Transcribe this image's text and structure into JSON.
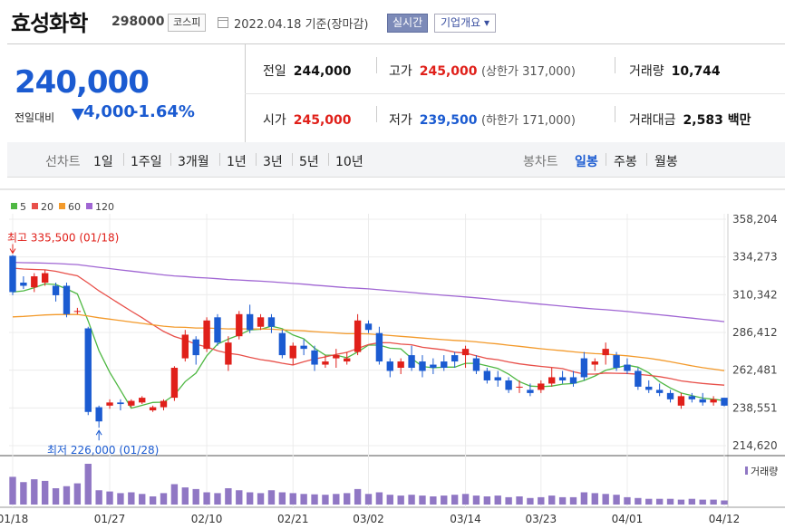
{
  "header": {
    "name": "효성화학",
    "code": "298000",
    "market": "코스피",
    "date": "2022.04.18 기준(장마감)",
    "realtime_btn": "실시간",
    "company_btn": "기업개요 ▾"
  },
  "quote": {
    "price": "240,000",
    "change_label": "전일대비",
    "change": "4,000",
    "change_pct": "-1.64%",
    "prev_close_label": "전일",
    "prev_close": "244,000",
    "high_label": "고가",
    "high": "245,000",
    "upper_limit": "(상한가 317,000)",
    "volume_label": "거래량",
    "volume": "10,744",
    "open_label": "시가",
    "open": "245,000",
    "low_label": "저가",
    "low": "239,500",
    "lower_limit": "(하한가 171,000)",
    "amount_label": "거래대금",
    "amount": "2,583 백만"
  },
  "periods": {
    "line_label": "선차트",
    "items": [
      "1일",
      "1주일",
      "3개월",
      "1년",
      "3년",
      "5년",
      "10년"
    ],
    "candle_label": "봉차트",
    "candle_items": [
      "일봉",
      "주봉",
      "월봉"
    ],
    "active_candle": "일봉"
  },
  "chart_data": {
    "type": "candlestick",
    "legend": [
      {
        "name": "5",
        "color": "#4fb843"
      },
      {
        "name": "20",
        "color": "#e8504a"
      },
      {
        "name": "60",
        "color": "#f39a2b"
      },
      {
        "name": "120",
        "color": "#a066d3"
      }
    ],
    "y_ticks": [
      "358,204",
      "334,273",
      "310,342",
      "286,412",
      "262,481",
      "238,551",
      "214,620"
    ],
    "y_tick_values": [
      358204,
      334273,
      310342,
      286412,
      262481,
      238551,
      214620
    ],
    "x_tick_labels": [
      "01/18",
      "01/27",
      "02/10",
      "02/21",
      "03/02",
      "03/14",
      "03/23",
      "04/01",
      "04/12"
    ],
    "x_tick_index": [
      0,
      9,
      18,
      26,
      33,
      42,
      49,
      57,
      66
    ],
    "annotation_high": "최고 335,500 (01/18)",
    "annotation_low": "최저 226,000 (01/28)",
    "volume_label": "거래량",
    "candles": [
      [
        335000,
        335500,
        310000,
        312000
      ],
      [
        318000,
        322000,
        314000,
        316000
      ],
      [
        315000,
        324000,
        312000,
        322000
      ],
      [
        318000,
        326000,
        316000,
        324000
      ],
      [
        316000,
        318000,
        306000,
        310000
      ],
      [
        316000,
        318000,
        296000,
        298000
      ],
      [
        300000,
        302000,
        298000,
        300000
      ],
      [
        289000,
        290000,
        234000,
        236000
      ],
      [
        239000,
        240000,
        226000,
        230000
      ],
      [
        240000,
        244000,
        238000,
        242000
      ],
      [
        242000,
        244000,
        237000,
        241000
      ],
      [
        240000,
        244000,
        239000,
        243000
      ],
      [
        242000,
        246000,
        241000,
        245000
      ],
      [
        237000,
        240000,
        236000,
        239000
      ],
      [
        239000,
        244000,
        237000,
        243000
      ],
      [
        245000,
        265000,
        243000,
        264000
      ],
      [
        270000,
        288000,
        268000,
        285000
      ],
      [
        282000,
        284000,
        266000,
        272000
      ],
      [
        276000,
        296000,
        274000,
        294000
      ],
      [
        296000,
        298000,
        278000,
        280000
      ],
      [
        266000,
        284000,
        262000,
        280000
      ],
      [
        284000,
        300000,
        282000,
        298000
      ],
      [
        298000,
        304000,
        286000,
        288000
      ],
      [
        290000,
        298000,
        288000,
        296000
      ],
      [
        296000,
        298000,
        286000,
        290000
      ],
      [
        286000,
        288000,
        270000,
        272000
      ],
      [
        270000,
        280000,
        266000,
        278000
      ],
      [
        278000,
        282000,
        272000,
        276000
      ],
      [
        275000,
        278000,
        262000,
        266000
      ],
      [
        266000,
        272000,
        264000,
        268000
      ],
      [
        270000,
        276000,
        264000,
        272000
      ],
      [
        268000,
        274000,
        266000,
        270000
      ],
      [
        274000,
        298000,
        272000,
        294000
      ],
      [
        292000,
        294000,
        286000,
        288000
      ],
      [
        286000,
        290000,
        266000,
        268000
      ],
      [
        268000,
        270000,
        258000,
        262000
      ],
      [
        264000,
        270000,
        260000,
        268000
      ],
      [
        272000,
        278000,
        262000,
        264000
      ],
      [
        268000,
        272000,
        258000,
        262000
      ],
      [
        266000,
        270000,
        260000,
        264000
      ],
      [
        268000,
        272000,
        262000,
        264000
      ],
      [
        272000,
        274000,
        264000,
        268000
      ],
      [
        272000,
        278000,
        264000,
        276000
      ],
      [
        270000,
        272000,
        260000,
        262000
      ],
      [
        262000,
        264000,
        254000,
        256000
      ],
      [
        258000,
        262000,
        252000,
        256000
      ],
      [
        256000,
        258000,
        248000,
        250000
      ],
      [
        252000,
        256000,
        248000,
        252000
      ],
      [
        250000,
        254000,
        246000,
        248000
      ],
      [
        250000,
        256000,
        248000,
        254000
      ],
      [
        254000,
        264000,
        252000,
        258000
      ],
      [
        258000,
        262000,
        254000,
        256000
      ],
      [
        258000,
        262000,
        252000,
        254000
      ],
      [
        270000,
        274000,
        256000,
        258000
      ],
      [
        266000,
        270000,
        262000,
        268000
      ],
      [
        272000,
        280000,
        266000,
        276000
      ],
      [
        272000,
        274000,
        262000,
        264000
      ],
      [
        266000,
        270000,
        260000,
        262000
      ],
      [
        262000,
        264000,
        250000,
        252000
      ],
      [
        252000,
        256000,
        248000,
        250000
      ],
      [
        250000,
        254000,
        246000,
        248000
      ],
      [
        248000,
        250000,
        242000,
        244000
      ],
      [
        240000,
        248000,
        238000,
        246000
      ],
      [
        246000,
        248000,
        242000,
        244000
      ],
      [
        244000,
        248000,
        240000,
        242000
      ],
      [
        242000,
        246000,
        240000,
        244000
      ],
      [
        245000,
        245000,
        239500,
        240000
      ]
    ],
    "volume": [
      68,
      55,
      62,
      58,
      40,
      45,
      52,
      100,
      35,
      32,
      28,
      30,
      26,
      20,
      28,
      50,
      42,
      38,
      30,
      28,
      40,
      35,
      30,
      28,
      35,
      30,
      28,
      26,
      25,
      24,
      26,
      28,
      38,
      26,
      30,
      24,
      22,
      24,
      22,
      20,
      22,
      24,
      26,
      22,
      20,
      22,
      18,
      20,
      16,
      18,
      22,
      18,
      18,
      30,
      28,
      26,
      24,
      18,
      16,
      14,
      14,
      14,
      12,
      14,
      12,
      12,
      10
    ]
  }
}
